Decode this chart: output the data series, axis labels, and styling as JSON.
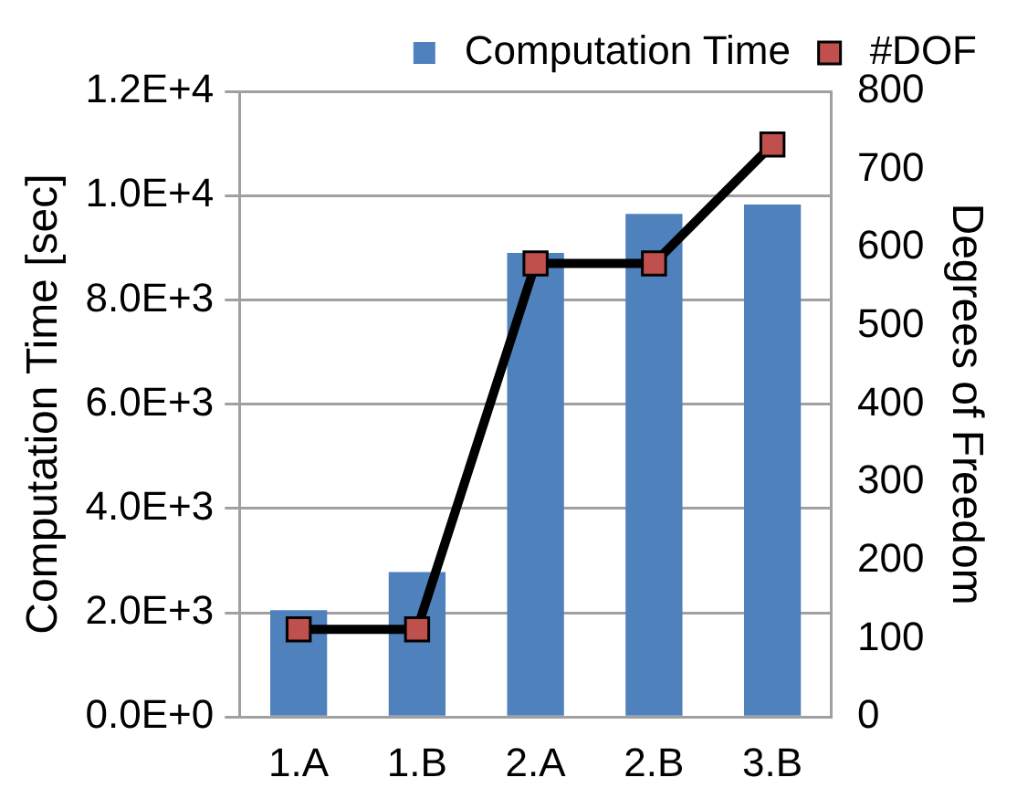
{
  "chart_data": {
    "type": "bar",
    "categories": [
      "1.A",
      "1.B",
      "2.A",
      "2.B",
      "3.B"
    ],
    "series": [
      {
        "name": "Computation Time",
        "color": "#4f81bd",
        "values": [
          2050,
          2780,
          8900,
          9650,
          9830
        ]
      },
      {
        "name": "#DOF",
        "type": "line",
        "axis": "y2",
        "color": "#000000",
        "values": [
          112,
          112,
          580,
          580,
          732
        ]
      }
    ],
    "ylabel": "Computation Time [sec]",
    "y2label": "Degrees of Freedom",
    "ylim": [
      0,
      12000
    ],
    "yticks": [
      {
        "value": 0,
        "label": "0.0E+0"
      },
      {
        "value": 2000,
        "label": "2.0E+3"
      },
      {
        "value": 4000,
        "label": "4.0E+3"
      },
      {
        "value": 6000,
        "label": "6.0E+3"
      },
      {
        "value": 8000,
        "label": "8.0E+3"
      },
      {
        "value": 10000,
        "label": "1.0E+4"
      },
      {
        "value": 12000,
        "label": "1.2E+4"
      }
    ],
    "y2lim": [
      0,
      800
    ],
    "y2ticks": [
      0,
      100,
      200,
      300,
      400,
      500,
      600,
      700,
      800
    ],
    "grid": "y",
    "legend": "top",
    "marker": "square",
    "line_style": "solid"
  }
}
